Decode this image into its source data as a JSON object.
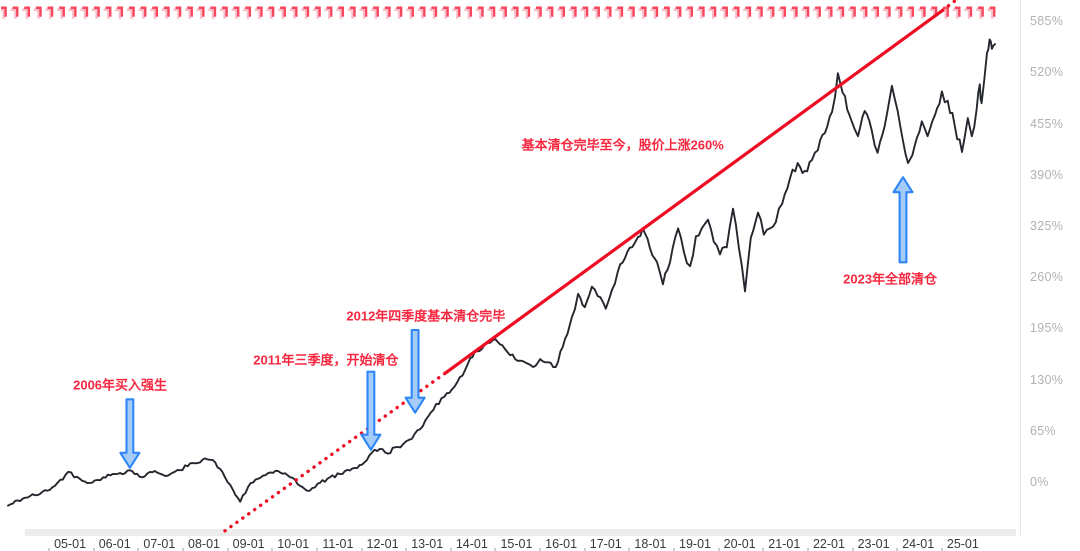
{
  "top_marks": {
    "glyph": "┓",
    "count": 86,
    "color": "#f7465e",
    "shadow_color": "#f9bdc8"
  },
  "axis_style": {
    "y_label_color": "#b2b2b2",
    "x_label_color": "#3a3a3a"
  },
  "chart_data": {
    "type": "line",
    "title": "",
    "xlabel": "",
    "ylabel": "",
    "grid": false,
    "legend": "none",
    "xlim_years": [
      2003.43,
      2026.28
    ],
    "ylim_pct": [
      -63.5,
      612
    ],
    "y_ticks": [
      {
        "pct": 585,
        "label": "585%"
      },
      {
        "pct": 520,
        "label": "520%"
      },
      {
        "pct": 455,
        "label": "455%"
      },
      {
        "pct": 390,
        "label": "390%"
      },
      {
        "pct": 325,
        "label": "325%"
      },
      {
        "pct": 260,
        "label": "260%"
      },
      {
        "pct": 195,
        "label": "195%"
      },
      {
        "pct": 130,
        "label": "130%"
      },
      {
        "pct": 65,
        "label": "65%"
      },
      {
        "pct": 0,
        "label": "0%"
      }
    ],
    "x_ticks": [
      {
        "t": 2005,
        "label": "05-01"
      },
      {
        "t": 2006,
        "label": "06-01"
      },
      {
        "t": 2007,
        "label": "07-01"
      },
      {
        "t": 2008,
        "label": "08-01"
      },
      {
        "t": 2009,
        "label": "09-01"
      },
      {
        "t": 2010,
        "label": "10-01"
      },
      {
        "t": 2011,
        "label": "11-01"
      },
      {
        "t": 2012,
        "label": "12-01"
      },
      {
        "t": 2013,
        "label": "13-01"
      },
      {
        "t": 2014,
        "label": "14-01"
      },
      {
        "t": 2015,
        "label": "15-01"
      },
      {
        "t": 2016,
        "label": "16-01"
      },
      {
        "t": 2017,
        "label": "17-01"
      },
      {
        "t": 2018,
        "label": "18-01"
      },
      {
        "t": 2019,
        "label": "19-01"
      },
      {
        "t": 2020,
        "label": "20-01"
      },
      {
        "t": 2021,
        "label": "21-01"
      },
      {
        "t": 2022,
        "label": "22-01"
      },
      {
        "t": 2023,
        "label": "23-01"
      },
      {
        "t": 2024,
        "label": "24-01"
      },
      {
        "t": 2025,
        "label": "25-01"
      }
    ],
    "series": [
      {
        "color": "#25272e",
        "points": [
          [
            2003.61,
            -30
          ],
          [
            2003.99,
            -20
          ],
          [
            2004.33,
            -15
          ],
          [
            2004.66,
            -5
          ],
          [
            2004.96,
            13
          ],
          [
            2005.22,
            4
          ],
          [
            2005.49,
            -1
          ],
          [
            2005.74,
            6
          ],
          [
            2006.01,
            10
          ],
          [
            2006.34,
            15
          ],
          [
            2006.61,
            6
          ],
          [
            2006.9,
            14
          ],
          [
            2007.19,
            8
          ],
          [
            2007.46,
            15
          ],
          [
            2007.75,
            24
          ],
          [
            2008.02,
            30
          ],
          [
            2008.25,
            25
          ],
          [
            2008.47,
            6
          ],
          [
            2008.65,
            -10
          ],
          [
            2008.81,
            -25
          ],
          [
            2008.99,
            -6
          ],
          [
            2009.21,
            4
          ],
          [
            2009.43,
            11
          ],
          [
            2009.66,
            14
          ],
          [
            2009.93,
            6
          ],
          [
            2010.15,
            -5
          ],
          [
            2010.37,
            -11
          ],
          [
            2010.6,
            -1
          ],
          [
            2010.82,
            6
          ],
          [
            2011.05,
            10
          ],
          [
            2011.32,
            17
          ],
          [
            2011.54,
            22
          ],
          [
            2011.76,
            37
          ],
          [
            2011.94,
            42
          ],
          [
            2012.12,
            36
          ],
          [
            2012.28,
            44
          ],
          [
            2012.46,
            48
          ],
          [
            2012.66,
            55
          ],
          [
            2012.84,
            67
          ],
          [
            2013.02,
            83
          ],
          [
            2013.2,
            99
          ],
          [
            2013.38,
            108
          ],
          [
            2013.56,
            118
          ],
          [
            2013.73,
            133
          ],
          [
            2013.91,
            150
          ],
          [
            2014.12,
            166
          ],
          [
            2014.29,
            175
          ],
          [
            2014.52,
            182
          ],
          [
            2014.74,
            169
          ],
          [
            2014.97,
            156
          ],
          [
            2015.19,
            152
          ],
          [
            2015.37,
            146
          ],
          [
            2015.53,
            156
          ],
          [
            2015.71,
            152
          ],
          [
            2015.88,
            146
          ],
          [
            2016.09,
            182
          ],
          [
            2016.24,
            209
          ],
          [
            2016.38,
            239
          ],
          [
            2016.53,
            222
          ],
          [
            2016.69,
            248
          ],
          [
            2016.82,
            236
          ],
          [
            2017.0,
            220
          ],
          [
            2017.14,
            244
          ],
          [
            2017.27,
            267
          ],
          [
            2017.43,
            284
          ],
          [
            2017.59,
            298
          ],
          [
            2017.72,
            311
          ],
          [
            2017.83,
            322
          ],
          [
            2017.99,
            297
          ],
          [
            2018.15,
            279
          ],
          [
            2018.28,
            251
          ],
          [
            2018.44,
            279
          ],
          [
            2018.62,
            322
          ],
          [
            2018.75,
            292
          ],
          [
            2018.89,
            274
          ],
          [
            2019.02,
            312
          ],
          [
            2019.15,
            322
          ],
          [
            2019.29,
            333
          ],
          [
            2019.42,
            305
          ],
          [
            2019.56,
            289
          ],
          [
            2019.71,
            298
          ],
          [
            2019.85,
            347
          ],
          [
            2019.98,
            298
          ],
          [
            2020.12,
            242
          ],
          [
            2020.25,
            310
          ],
          [
            2020.41,
            342
          ],
          [
            2020.54,
            314
          ],
          [
            2020.68,
            322
          ],
          [
            2020.81,
            330
          ],
          [
            2020.95,
            353
          ],
          [
            2021.13,
            386
          ],
          [
            2021.3,
            405
          ],
          [
            2021.46,
            395
          ],
          [
            2021.62,
            409
          ],
          [
            2021.75,
            421
          ],
          [
            2021.91,
            443
          ],
          [
            2022.07,
            470
          ],
          [
            2022.2,
            519
          ],
          [
            2022.36,
            490
          ],
          [
            2022.51,
            458
          ],
          [
            2022.65,
            439
          ],
          [
            2022.8,
            471
          ],
          [
            2022.96,
            446
          ],
          [
            2023.09,
            418
          ],
          [
            2023.25,
            452
          ],
          [
            2023.41,
            503
          ],
          [
            2023.54,
            471
          ],
          [
            2023.66,
            433
          ],
          [
            2023.77,
            405
          ],
          [
            2023.92,
            427
          ],
          [
            2024.08,
            458
          ],
          [
            2024.21,
            439
          ],
          [
            2024.37,
            465
          ],
          [
            2024.53,
            496
          ],
          [
            2024.66,
            484
          ],
          [
            2024.82,
            452
          ],
          [
            2024.98,
            419
          ],
          [
            2025.11,
            462
          ],
          [
            2025.2,
            439
          ],
          [
            2025.31,
            474
          ],
          [
            2025.38,
            505
          ],
          [
            2025.42,
            481
          ],
          [
            2025.54,
            545
          ],
          [
            2025.6,
            562
          ],
          [
            2025.65,
            550
          ],
          [
            2025.72,
            556
          ]
        ]
      }
    ],
    "trend_line": {
      "color": "#ee0c22",
      "dotted": [
        [
          2008.47,
          -62
        ],
        [
          2013.4,
          138
        ]
      ],
      "solid": [
        [
          2013.4,
          138
        ],
        [
          2024.55,
          599
        ]
      ],
      "dotted_tail": [
        [
          2024.55,
          599
        ],
        [
          2024.89,
          614
        ]
      ]
    },
    "annotation_color": "#f5283f",
    "arrow_fill": "#a5cbf9",
    "arrow_stroke": "#2e86f7",
    "annotations": [
      {
        "id": "buy-2006",
        "text": "2006年买入强生",
        "t": 2006.12,
        "pct": 124,
        "arrow": {
          "t": 2006.34,
          "from_pct": 105,
          "to_pct": 18
        }
      },
      {
        "id": "sell-start-2011",
        "text": "2011年三季度，开始清仓",
        "t": 2010.73,
        "pct": 156,
        "arrow": {
          "t": 2011.74,
          "from_pct": 140,
          "to_pct": 41
        }
      },
      {
        "id": "sell-done-2012",
        "text": "2012年四季度基本清仓完毕",
        "t": 2012.97,
        "pct": 212,
        "arrow": {
          "t": 2012.73,
          "from_pct": 193,
          "to_pct": 88
        }
      },
      {
        "id": "since-cleared-gain",
        "text": "基本清仓完毕至今，股价上涨260%",
        "t": 2017.38,
        "pct": 429,
        "arrow": null
      },
      {
        "id": "sell-all-2023",
        "text": "2023年全部清仓",
        "t": 2023.37,
        "pct": 259,
        "arrow": {
          "t": 2023.66,
          "from_pct": 279,
          "to_pct": 387
        }
      }
    ]
  }
}
